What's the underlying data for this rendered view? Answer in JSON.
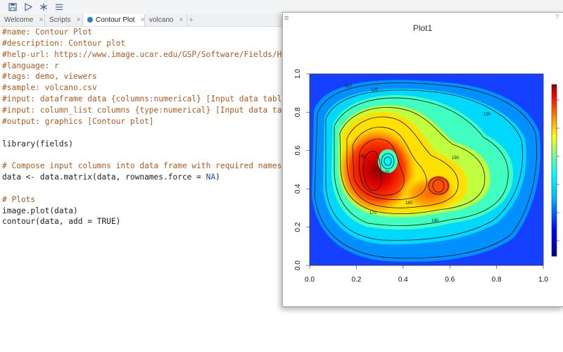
{
  "toolbar": {
    "icons": [
      "save-icon",
      "play-icon",
      "asterisk-icon",
      "menu-icon"
    ]
  },
  "tabs": [
    {
      "label": "Welcome",
      "active": false
    },
    {
      "label": "Scripts",
      "active": false
    },
    {
      "label": "Contour Plot",
      "active": true
    },
    {
      "label": "volcano",
      "active": false
    }
  ],
  "editor": {
    "lines": [
      "#name: Contour Plot",
      "#description: Contour plot",
      "#help-url: https://www.image.ucar.edu/GSP/Software/Fields/Help.",
      "#language: r",
      "#tags: demo, viewers",
      "#sample: volcano.csv",
      "#input: dataframe data {columns:numerical} [Input data table]",
      "#input: column_list columns {type:numerical} [Input data table",
      "#output: graphics [Contour plot]",
      "",
      "library(fields)",
      "",
      "# Compose input columns into data frame with required names",
      "data <- data.matrix(data, rownames.force = NA)",
      "",
      "# Plots",
      "image.plot(data)",
      "contour(data, add = TRUE)"
    ]
  },
  "plot": {
    "title": "Plot1",
    "chart_data": {
      "type": "heatmap",
      "title": "Plot1",
      "xlim": [
        0,
        1
      ],
      "ylim": [
        0,
        1
      ],
      "x_ticks": [
        "0.0",
        "0.2",
        "0.4",
        "0.6",
        "0.8",
        "1.0"
      ],
      "y_ticks": [
        "0.0",
        "0.2",
        "0.4",
        "0.6",
        "0.8",
        "1.0"
      ],
      "contour_labels": [
        "110",
        "120",
        "130",
        "140",
        "150",
        "160",
        "170",
        "180",
        "190"
      ],
      "colorbar": "right",
      "palette": [
        "#00008b",
        "#0000ff",
        "#00bfff",
        "#00ffff",
        "#80ff80",
        "#ffff00",
        "#ff8000",
        "#ff0000",
        "#8b0000"
      ]
    }
  }
}
